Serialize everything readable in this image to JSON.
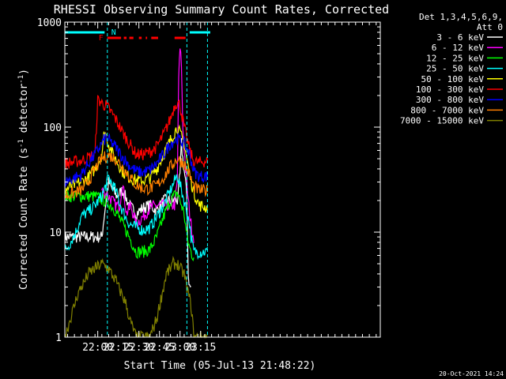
{
  "chart_data": {
    "type": "line",
    "title": "RHESSI Observing Summary Count Rates, Corrected",
    "xlabel": "Start Time (05-Jul-13 21:48:22)",
    "ylabel": "Corrected Count Rate (s-1 detector-1)",
    "ylabel_parts": {
      "main": "Corrected Count Rate (s",
      "exp1": "-1",
      "mid": " detector",
      "exp2": "-1",
      "end": ")"
    },
    "yscale": "log",
    "xlim_min": [
      -12,
      218
    ],
    "ylim": [
      1,
      1000
    ],
    "x_ticks": [
      {
        "min": 12,
        "label": "22:00"
      },
      {
        "min": 27,
        "label": "22:15"
      },
      {
        "min": 42,
        "label": "22:30"
      },
      {
        "min": 57,
        "label": "22:45"
      },
      {
        "min": 72,
        "label": "23:00"
      },
      {
        "min": 87,
        "label": "23:15"
      }
    ],
    "y_ticks": [
      {
        "value": 1,
        "label": "1"
      },
      {
        "value": 10,
        "label": "10"
      },
      {
        "value": 100,
        "label": "100"
      },
      {
        "value": 1000,
        "label": "1000"
      }
    ],
    "legend_header": [
      "Det 1,3,4,5,6,9,",
      "Att 0"
    ],
    "legend_placement": "right",
    "attenuator_bars": [
      [
        -12,
        17
      ],
      [
        79,
        94
      ]
    ],
    "flare_flag": {
      "label": "F",
      "segments": [
        [
          19,
          29
        ],
        [
          31,
          33
        ],
        [
          35,
          38
        ],
        [
          42,
          44
        ],
        [
          47,
          48
        ],
        [
          51,
          56
        ],
        [
          68,
          76
        ]
      ]
    },
    "night_marker": {
      "label": "N",
      "at": 19
    },
    "night_lines": [
      19,
      77,
      92
    ],
    "series": [
      {
        "name": "3 - 6 keV",
        "color": "#ffffff",
        "x": [
          -12,
          2,
          15,
          16,
          19,
          20,
          22,
          26,
          30,
          35,
          40,
          45,
          50,
          55,
          60,
          65,
          70,
          72,
          73,
          74,
          76,
          77,
          78,
          79,
          80
        ],
        "y": [
          9,
          9,
          9,
          12,
          25,
          30,
          26,
          22,
          25,
          18,
          15,
          17,
          18,
          16,
          20,
          20,
          20,
          35,
          70,
          50,
          30,
          20,
          4,
          3,
          3
        ]
      },
      {
        "name": "6 - 12 keV",
        "color": "#ff00ff",
        "x": [
          15,
          20,
          25,
          28,
          30,
          33,
          36,
          40,
          45,
          50,
          55,
          60,
          65,
          68,
          70,
          71,
          72,
          73,
          74,
          76,
          78,
          79,
          80,
          81,
          82
        ],
        "y": [
          25,
          22,
          18,
          18,
          30,
          15,
          18,
          12,
          14,
          17,
          18,
          18,
          18,
          18,
          30,
          300,
          550,
          400,
          100,
          40,
          20,
          15,
          12,
          10,
          9
        ]
      },
      {
        "name": "12 - 25 keV",
        "color": "#00ff00",
        "x": [
          -12,
          10,
          20,
          25,
          30,
          35,
          40,
          45,
          50,
          55,
          60,
          65,
          70,
          75,
          77,
          79,
          81,
          82
        ],
        "y": [
          22,
          22,
          19,
          16,
          12,
          9,
          6.5,
          6.5,
          6.8,
          9,
          14,
          20,
          24,
          15,
          9,
          7,
          6,
          6
        ]
      },
      {
        "name": "25 - 50 keV",
        "color": "#00ffff",
        "x": [
          -12,
          -8,
          -4,
          0,
          3,
          6,
          10,
          15,
          20,
          25,
          30,
          35,
          40,
          45,
          50,
          55,
          60,
          65,
          70,
          75,
          79,
          80,
          82,
          88,
          92
        ],
        "y": [
          6.5,
          8,
          10,
          14,
          15,
          16,
          18,
          22,
          33,
          25,
          16,
          12,
          11,
          10.5,
          11,
          14,
          18,
          25,
          35,
          20,
          12,
          9,
          6.5,
          6.5,
          6.5
        ]
      },
      {
        "name": "50 - 100 keV",
        "color": "#ffff00",
        "x": [
          -12,
          -6,
          0,
          5,
          10,
          15,
          17,
          19,
          23,
          27,
          30,
          35,
          40,
          45,
          50,
          55,
          60,
          65,
          70,
          75,
          79,
          82,
          86,
          92
        ],
        "y": [
          25,
          28,
          30,
          33,
          40,
          55,
          95,
          75,
          55,
          45,
          38,
          33,
          31,
          31,
          33,
          40,
          55,
          75,
          100,
          70,
          35,
          24,
          18,
          17
        ]
      },
      {
        "name": "100 - 300 keV",
        "color": "#ff0000",
        "x": [
          -12,
          0,
          10,
          12,
          14,
          16,
          18,
          20,
          25,
          30,
          35,
          40,
          45,
          50,
          55,
          60,
          65,
          68,
          70,
          72,
          75,
          79,
          82,
          86,
          92
        ],
        "y": [
          45,
          48,
          55,
          180,
          175,
          165,
          160,
          150,
          120,
          90,
          70,
          55,
          55,
          58,
          65,
          85,
          120,
          160,
          175,
          160,
          100,
          60,
          47,
          46,
          48
        ]
      },
      {
        "name": "300 - 800 keV",
        "color": "#0000ff",
        "x": [
          -12,
          0,
          5,
          10,
          15,
          18,
          20,
          25,
          30,
          35,
          40,
          45,
          50,
          55,
          60,
          65,
          70,
          75,
          79,
          82,
          86,
          92
        ],
        "y": [
          30,
          35,
          45,
          55,
          70,
          80,
          75,
          65,
          52,
          43,
          38,
          37,
          39,
          45,
          55,
          70,
          78,
          70,
          55,
          38,
          34,
          34
        ]
      },
      {
        "name": "800 - 7000 keV",
        "color": "#ff7f00",
        "x": [
          -12,
          0,
          5,
          10,
          15,
          20,
          25,
          30,
          35,
          40,
          45,
          50,
          55,
          60,
          65,
          70,
          75,
          79,
          82,
          86,
          92
        ],
        "y": [
          22,
          25,
          30,
          40,
          50,
          54,
          50,
          42,
          34,
          28,
          26,
          26,
          28,
          33,
          42,
          50,
          45,
          35,
          27,
          25,
          25
        ]
      },
      {
        "name": "7000 - 15000 keV",
        "color": "#808000",
        "x": [
          -12,
          -8,
          -5,
          -3,
          0,
          3,
          5,
          10,
          15,
          20,
          22,
          25,
          27,
          30,
          33,
          35,
          40,
          45,
          50,
          55,
          57,
          60,
          62,
          65,
          67,
          70,
          72,
          75,
          77,
          80,
          81,
          82,
          85,
          92
        ],
        "y": [
          1,
          1.5,
          2,
          2.5,
          3,
          3.5,
          4,
          4.5,
          5,
          4.5,
          4,
          3.5,
          3,
          2.5,
          2,
          1.5,
          1,
          1,
          1,
          1.5,
          2,
          3,
          4,
          4.5,
          5,
          5,
          4.5,
          4,
          3,
          2,
          1.5,
          1,
          1,
          1
        ]
      }
    ]
  },
  "footer": {
    "timestamp": "20-Oct-2021 14:24"
  }
}
